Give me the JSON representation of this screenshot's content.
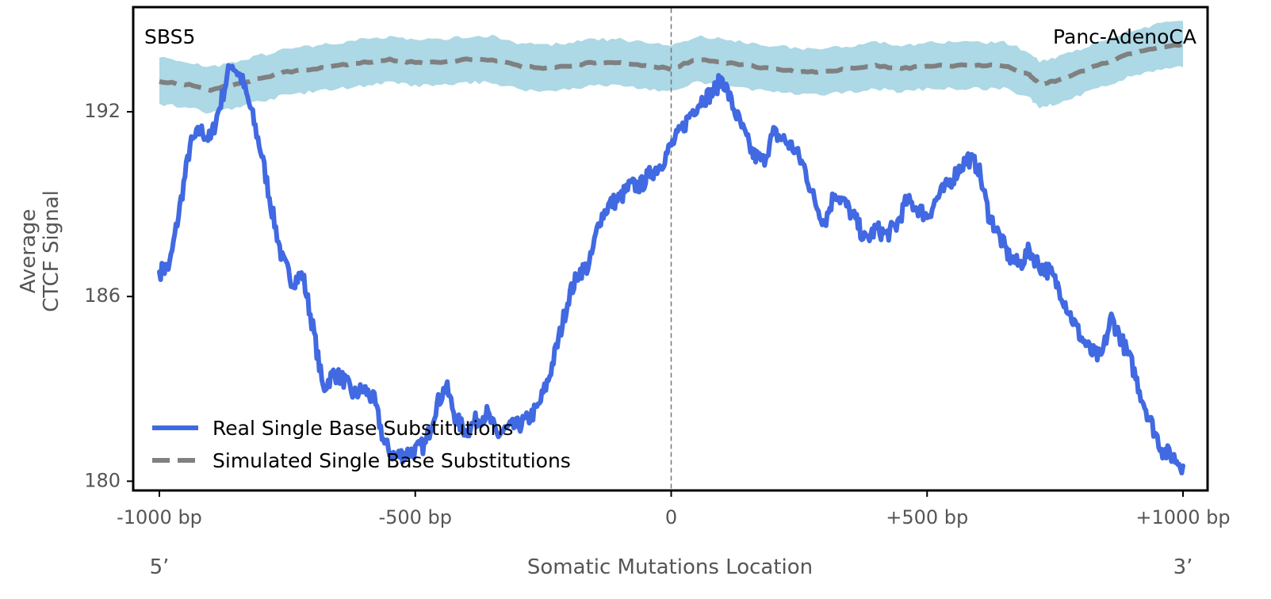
{
  "chart_data": {
    "type": "line",
    "signature_label": "SBS5",
    "cancer_type_label": "Panc-AdenoCA",
    "xlabel": "Somatic Mutations Location",
    "ylabel_lines": [
      "Average",
      "CTCF Signal"
    ],
    "five_prime_label": "5’",
    "three_prime_label": "3’",
    "xlim": [
      -1000,
      1000
    ],
    "ylim": [
      179.7,
      195.4
    ],
    "x_ticks": [
      {
        "value": -1000,
        "label": "-1000 bp"
      },
      {
        "value": -500,
        "label": "-500 bp"
      },
      {
        "value": 0,
        "label": "0"
      },
      {
        "value": 500,
        "label": "+500 bp"
      },
      {
        "value": 1000,
        "label": "+1000 bp"
      }
    ],
    "y_ticks": [
      {
        "value": 180,
        "label": "180"
      },
      {
        "value": 186,
        "label": "186"
      },
      {
        "value": 192,
        "label": "192"
      }
    ],
    "center_line_x": 0,
    "legend_position": "lower-left",
    "series": [
      {
        "name": "Real Single Base Substitutions",
        "color": "#4169E1",
        "style": "solid",
        "x": [
          -1000,
          -980,
          -960,
          -940,
          -920,
          -900,
          -880,
          -860,
          -840,
          -820,
          -800,
          -780,
          -760,
          -740,
          -720,
          -700,
          -680,
          -660,
          -640,
          -620,
          -600,
          -580,
          -560,
          -540,
          -520,
          -500,
          -480,
          -460,
          -440,
          -420,
          -400,
          -380,
          -360,
          -340,
          -320,
          -300,
          -280,
          -260,
          -240,
          -220,
          -200,
          -180,
          -160,
          -140,
          -120,
          -100,
          -80,
          -60,
          -40,
          -20,
          0,
          20,
          40,
          60,
          80,
          100,
          120,
          140,
          160,
          180,
          200,
          220,
          240,
          260,
          280,
          300,
          320,
          340,
          360,
          380,
          400,
          420,
          440,
          460,
          480,
          500,
          520,
          540,
          560,
          580,
          600,
          620,
          640,
          660,
          680,
          700,
          720,
          740,
          760,
          780,
          800,
          820,
          840,
          860,
          880,
          900,
          920,
          940,
          960,
          980,
          1000
        ],
        "values": [
          186.8,
          187.0,
          188.9,
          190.9,
          191.4,
          191.1,
          192.3,
          193.6,
          193.1,
          192.0,
          190.6,
          188.8,
          187.2,
          186.5,
          186.7,
          185.0,
          183.0,
          183.5,
          183.3,
          182.8,
          183.0,
          182.6,
          181.2,
          180.8,
          180.9,
          181.0,
          181.2,
          182.4,
          183.1,
          182.0,
          181.6,
          182.0,
          182.2,
          181.5,
          181.7,
          181.8,
          182.0,
          182.4,
          183.3,
          184.6,
          186.0,
          186.8,
          187.0,
          188.5,
          189.0,
          189.2,
          189.6,
          189.6,
          190.0,
          190.3,
          190.9,
          191.4,
          192.0,
          192.4,
          192.6,
          193.1,
          192.2,
          191.4,
          190.6,
          190.4,
          191.3,
          191.1,
          190.8,
          190.2,
          189.1,
          188.4,
          189.4,
          189.0,
          188.5,
          187.8,
          188.2,
          188.0,
          188.3,
          189.1,
          188.9,
          188.6,
          189.2,
          189.6,
          190.1,
          190.5,
          190.2,
          188.7,
          188.0,
          187.3,
          187.0,
          187.5,
          187.0,
          186.8,
          186.2,
          185.4,
          184.7,
          184.2,
          184.0,
          185.3,
          184.6,
          183.8,
          182.7,
          181.8,
          181.0,
          180.8,
          180.5
        ]
      },
      {
        "name": "Simulated Single Base Substitutions",
        "color": "#808080",
        "band_color": "#ADD8E6",
        "style": "dashed",
        "x": [
          -1000,
          -950,
          -900,
          -850,
          -800,
          -750,
          -700,
          -650,
          -600,
          -550,
          -500,
          -450,
          -400,
          -350,
          -300,
          -250,
          -200,
          -150,
          -100,
          -50,
          0,
          50,
          100,
          150,
          200,
          250,
          300,
          350,
          400,
          450,
          500,
          550,
          600,
          650,
          700,
          720,
          750,
          800,
          850,
          900,
          950,
          1000
        ],
        "values": [
          193.0,
          192.9,
          192.7,
          192.9,
          193.1,
          193.3,
          193.4,
          193.5,
          193.6,
          193.7,
          193.6,
          193.6,
          193.7,
          193.7,
          193.5,
          193.4,
          193.5,
          193.6,
          193.6,
          193.5,
          193.4,
          193.7,
          193.6,
          193.5,
          193.4,
          193.3,
          193.3,
          193.4,
          193.5,
          193.4,
          193.5,
          193.5,
          193.5,
          193.5,
          193.2,
          192.9,
          193.0,
          193.3,
          193.6,
          193.9,
          194.1,
          194.2
        ],
        "band_halfwidth": 0.75
      }
    ]
  }
}
